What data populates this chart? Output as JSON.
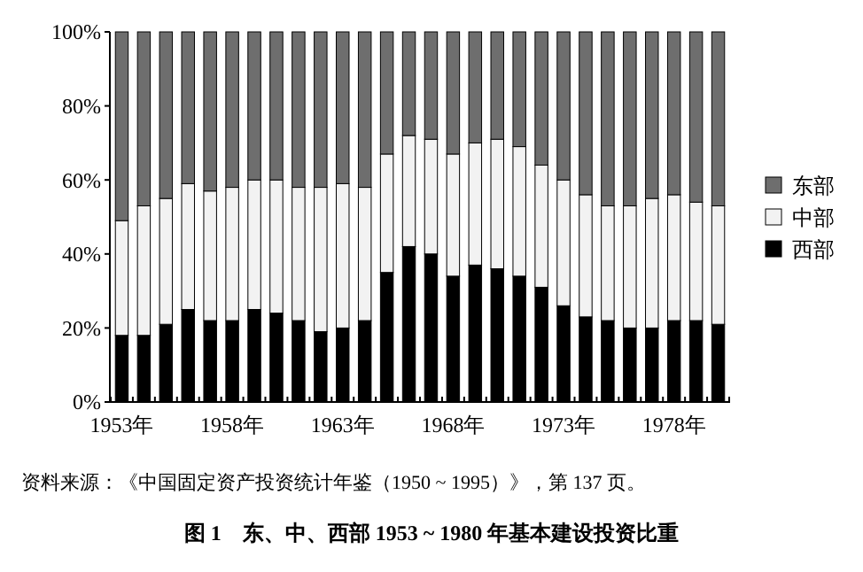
{
  "chart_data": {
    "type": "bar",
    "stacked": true,
    "title": "图 1　东、中、西部 1953 ~ 1980 年基本建设投资比重",
    "annotations": [
      "资料来源：《中国固定资产投资统计年鉴（1950 ~ 1995）》，第 137 页。"
    ],
    "categories": [
      "1953年",
      null,
      null,
      null,
      null,
      "1958年",
      null,
      null,
      null,
      null,
      "1963年",
      null,
      null,
      null,
      null,
      "1968年",
      null,
      null,
      null,
      null,
      "1973年",
      null,
      null,
      null,
      null,
      "1978年",
      null,
      null
    ],
    "series": [
      {
        "name": "西部",
        "color": "#000000",
        "values": [
          18,
          18,
          21,
          25,
          22,
          22,
          25,
          24,
          22,
          19,
          20,
          22,
          35,
          42,
          40,
          34,
          37,
          36,
          34,
          31,
          26,
          23,
          22,
          20,
          20,
          22,
          22,
          21
        ]
      },
      {
        "name": "中部",
        "color": "#f2f2f2",
        "values": [
          31,
          35,
          34,
          34,
          35,
          36,
          35,
          36,
          36,
          39,
          39,
          36,
          32,
          30,
          31,
          33,
          33,
          35,
          35,
          33,
          34,
          33,
          31,
          33,
          35,
          34,
          32,
          32
        ]
      },
      {
        "name": "东部",
        "color": "#6e6e6e",
        "values": [
          51,
          47,
          45,
          41,
          43,
          42,
          40,
          40,
          42,
          42,
          41,
          42,
          33,
          28,
          29,
          33,
          30,
          29,
          31,
          36,
          40,
          44,
          47,
          47,
          45,
          44,
          46,
          47
        ]
      }
    ],
    "ylim": [
      0,
      100
    ],
    "yticks": [
      {
        "value": 0,
        "label": "0%"
      },
      {
        "value": 20,
        "label": "20%"
      },
      {
        "value": 40,
        "label": "40%"
      },
      {
        "value": 60,
        "label": "60%"
      },
      {
        "value": 80,
        "label": "80%"
      },
      {
        "value": 100,
        "label": "100%"
      }
    ],
    "legend": "right",
    "grid": false
  }
}
